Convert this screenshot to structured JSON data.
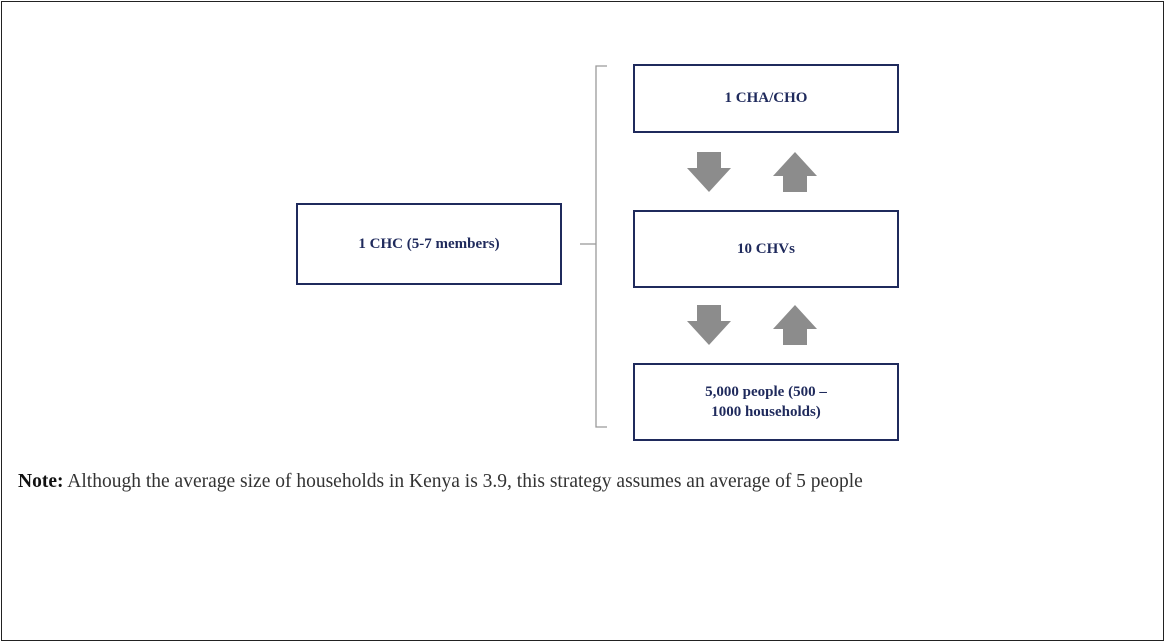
{
  "nodes": [
    {
      "label": "1 CHC (5-7 members)"
    },
    {
      "label": "1 CHA/CHO"
    },
    {
      "label": "10 CHVs"
    },
    {
      "label": [
        "5,000 people (500 –",
        "1000 households)"
      ]
    }
  ],
  "note": {
    "label": "Note:",
    "text": "Although the average size of households in Kenya is 3.9, this strategy assumes an average of 5 people"
  }
}
